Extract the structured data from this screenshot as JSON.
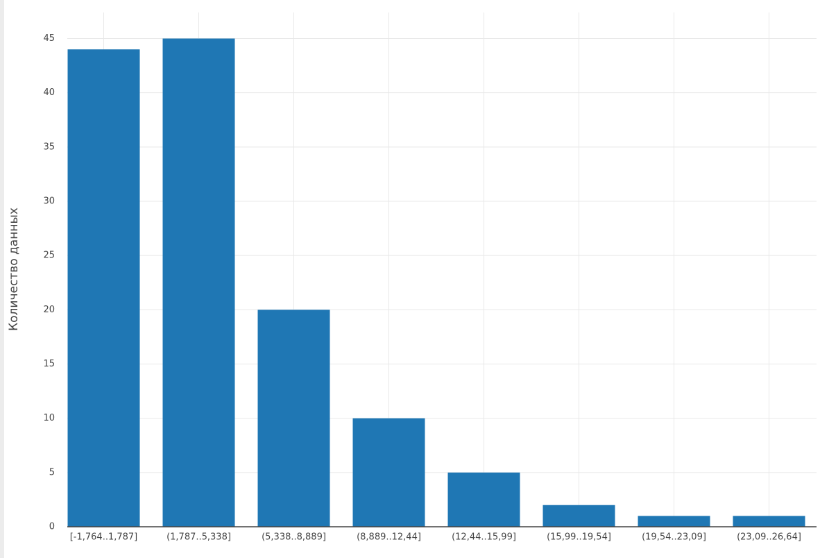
{
  "chart_data": {
    "type": "bar",
    "y_label": "Количество данных",
    "categories": [
      "[-1,764..1,787]",
      "(1,787..5,338]",
      "(5,338..8,889]",
      "(8,889..12,44]",
      "(12,44..15,99]",
      "(15,99..19,54]",
      "(19,54..23,09]",
      "(23,09..26,64]"
    ],
    "values": [
      44,
      45,
      20,
      10,
      5,
      2,
      1,
      1
    ],
    "color": "#1f77b4",
    "ylim": [
      0,
      47.4
    ],
    "yticks": [
      0,
      5,
      10,
      15,
      20,
      25,
      30,
      35,
      40,
      45
    ],
    "grid": true
  }
}
